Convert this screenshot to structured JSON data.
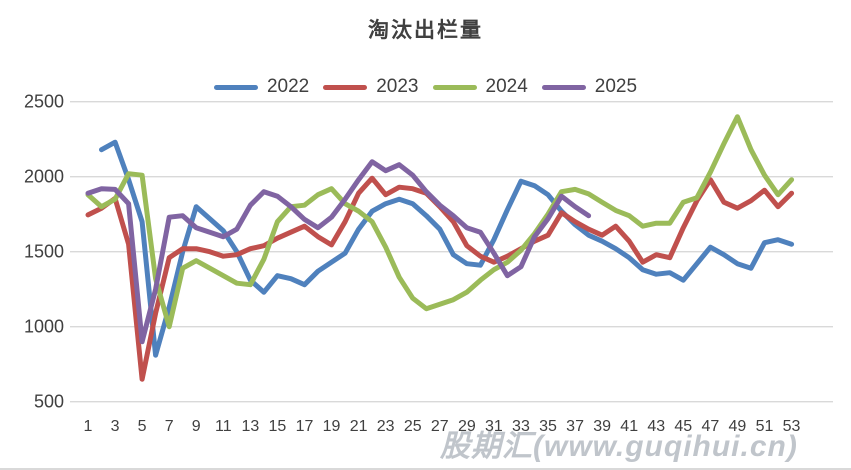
{
  "title": "淘汰出栏量",
  "watermark": "股期汇(www.guqihui.cn)",
  "colors": {
    "grid": "#d9d9d9",
    "axis_text": "#404040",
    "title_text": "#404040",
    "background": "#ffffff"
  },
  "chart_data": {
    "type": "line",
    "title": "淘汰出栏量",
    "xlabel": "",
    "ylabel": "",
    "x_range": [
      1,
      53
    ],
    "x_tick_step": 2,
    "x_ticks": [
      1,
      3,
      5,
      7,
      9,
      11,
      13,
      15,
      17,
      19,
      21,
      23,
      25,
      27,
      29,
      31,
      33,
      35,
      37,
      39,
      41,
      43,
      45,
      47,
      49,
      51,
      53
    ],
    "y_ticks": [
      500,
      1000,
      1500,
      2000,
      2500
    ],
    "ylim": [
      500,
      2500
    ],
    "grid": true,
    "legend_position": "top",
    "x": [
      1,
      2,
      3,
      4,
      5,
      6,
      7,
      8,
      9,
      10,
      11,
      12,
      13,
      14,
      15,
      16,
      17,
      18,
      19,
      20,
      21,
      22,
      23,
      24,
      25,
      26,
      27,
      28,
      29,
      30,
      31,
      32,
      33,
      34,
      35,
      36,
      37,
      38,
      39,
      40,
      41,
      42,
      43,
      44,
      45,
      46,
      47,
      48,
      49,
      50,
      51,
      52,
      53
    ],
    "series": [
      {
        "name": "2022",
        "color": "#4F81BD",
        "values": [
          null,
          2180,
          2230,
          1980,
          1700,
          810,
          1130,
          1500,
          1800,
          1720,
          1640,
          1500,
          1310,
          1230,
          1340,
          1320,
          1280,
          1370,
          1430,
          1490,
          1650,
          1770,
          1820,
          1850,
          1820,
          1740,
          1650,
          1480,
          1420,
          1410,
          1580,
          1780,
          1970,
          1940,
          1880,
          1770,
          1680,
          1610,
          1570,
          1520,
          1460,
          1380,
          1350,
          1360,
          1310,
          1420,
          1530,
          1480,
          1420,
          1390,
          1560,
          1580,
          1550
        ]
      },
      {
        "name": "2023",
        "color": "#C0504D",
        "values": [
          1745,
          1790,
          1855,
          1550,
          650,
          1090,
          1460,
          1520,
          1520,
          1500,
          1470,
          1480,
          1520,
          1540,
          1590,
          1630,
          1670,
          1600,
          1545,
          1700,
          1890,
          1990,
          1880,
          1930,
          1920,
          1890,
          1800,
          1700,
          1540,
          1470,
          1430,
          1470,
          1520,
          1570,
          1610,
          1760,
          1700,
          1650,
          1610,
          1670,
          1570,
          1430,
          1480,
          1460,
          1660,
          1840,
          1980,
          1830,
          1790,
          1840,
          1910,
          1800,
          1890
        ]
      },
      {
        "name": "2024",
        "color": "#9BBB59",
        "values": [
          1880,
          1800,
          1850,
          2020,
          2010,
          1320,
          1000,
          1390,
          1440,
          1390,
          1340,
          1290,
          1280,
          1450,
          1700,
          1800,
          1810,
          1880,
          1920,
          1820,
          1770,
          1700,
          1530,
          1330,
          1190,
          1120,
          1150,
          1180,
          1230,
          1310,
          1380,
          1430,
          1510,
          1620,
          1750,
          1900,
          1915,
          1885,
          1830,
          1775,
          1740,
          1670,
          1690,
          1690,
          1830,
          1860,
          2030,
          2220,
          2400,
          2180,
          2010,
          1880,
          1980
        ]
      },
      {
        "name": "2025",
        "color": "#8064A2",
        "values": [
          1890,
          1920,
          1915,
          1820,
          900,
          1250,
          1730,
          1740,
          1660,
          1630,
          1600,
          1650,
          1810,
          1900,
          1870,
          1800,
          1715,
          1660,
          1730,
          1850,
          1980,
          2100,
          2040,
          2080,
          2010,
          1900,
          1810,
          1740,
          1660,
          1630,
          1490,
          1340,
          1400,
          1600,
          1720,
          1870,
          1800,
          1740
        ]
      }
    ]
  }
}
